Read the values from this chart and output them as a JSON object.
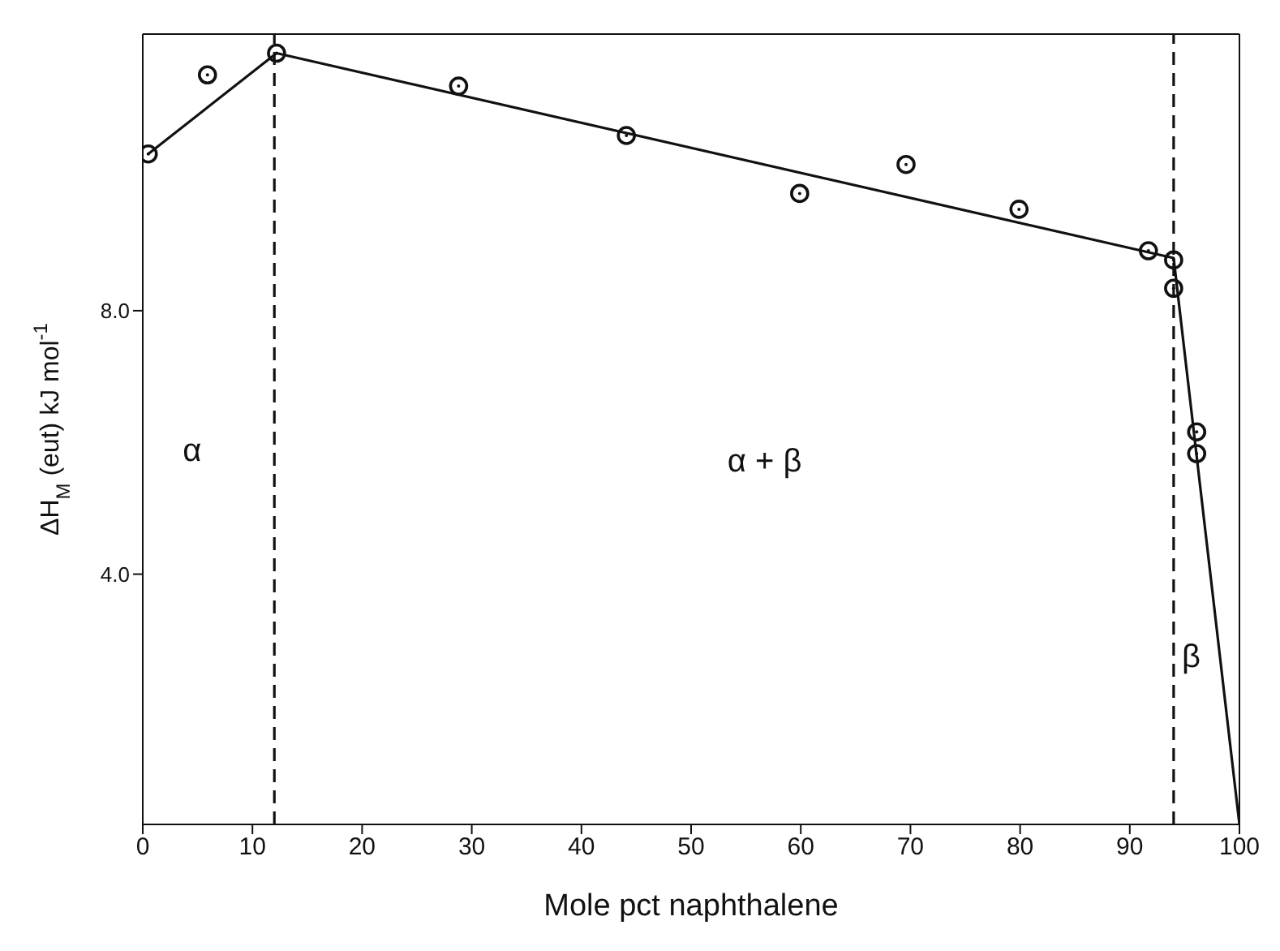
{
  "chart_data": {
    "type": "scatter",
    "xlabel": "Mole pct naphthalene",
    "ylabel": "ΔH$_{M}$ (eut) kJ mol$^{-1}$",
    "xlim": [
      0,
      100
    ],
    "ylim": [
      0.2,
      12.2
    ],
    "xticks": [
      0,
      10,
      20,
      30,
      40,
      50,
      60,
      70,
      80,
      90,
      100
    ],
    "yticks": [
      {
        "value": 4,
        "label": "4.0"
      },
      {
        "value": 8,
        "label": "8.0"
      }
    ],
    "series": [
      {
        "marker": "circle",
        "color": "#111111",
        "x": [
          0.5,
          5.9,
          12.2,
          28.8,
          44.1,
          59.9,
          69.6,
          79.9,
          91.7,
          94.0,
          94.0,
          96.1,
          96.1
        ],
        "values": [
          10.38,
          11.58,
          11.91,
          11.41,
          10.66,
          9.78,
          10.22,
          9.54,
          8.91,
          8.77,
          8.34,
          6.16,
          5.83
        ]
      },
      {
        "type": "line",
        "color": "#111111",
        "line_style": "solid",
        "x": [
          0.5,
          12.2,
          94.0,
          100
        ],
        "values": [
          10.38,
          11.91,
          8.8,
          0.2
        ]
      }
    ],
    "ref_lines": [
      {
        "axis": "x",
        "value": 12,
        "line_style": "dashed",
        "color": "#111111"
      },
      {
        "axis": "x",
        "value": 94,
        "line_style": "dashed",
        "color": "#111111"
      }
    ],
    "annotations": [
      "α",
      "α + β",
      "β"
    ]
  }
}
